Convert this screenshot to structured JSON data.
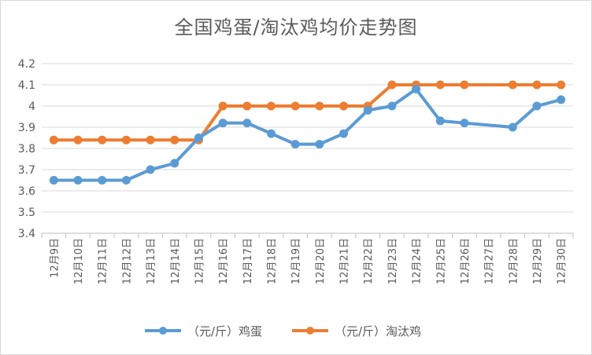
{
  "chart_data": {
    "type": "line",
    "title": "全国鸡蛋/淘汰鸡均价走势图",
    "categories": [
      "12月9日",
      "12月10日",
      "12月11日",
      "12月12日",
      "12月13日",
      "12月14日",
      "12月15日",
      "12月16日",
      "12月17日",
      "12月18日",
      "12月19日",
      "12月20日",
      "12月21日",
      "12月22日",
      "12月23日",
      "12月24日",
      "12月25日",
      "12月26日",
      "12月27日",
      "12月28日",
      "12月29日",
      "12月30日"
    ],
    "yticks": [
      "3.4",
      "3.5",
      "3.6",
      "3.7",
      "3.8",
      "3.9",
      "4",
      "4.1",
      "4.2"
    ],
    "ylim": [
      3.4,
      4.2
    ],
    "grid": true,
    "legend_position": "bottom",
    "series": [
      {
        "name": "（元/斤）鸡蛋",
        "color": "#5b9bd5",
        "values": [
          3.65,
          3.65,
          3.65,
          3.65,
          3.7,
          3.73,
          3.85,
          3.92,
          3.92,
          3.87,
          3.82,
          3.82,
          3.87,
          3.98,
          4.0,
          4.08,
          3.93,
          3.92,
          null,
          3.9,
          4.0,
          4.03
        ]
      },
      {
        "name": "（元/斤）淘汰鸡",
        "color": "#ed7d31",
        "values": [
          3.84,
          3.84,
          3.84,
          3.84,
          3.84,
          3.84,
          3.84,
          4.0,
          4.0,
          4.0,
          4.0,
          4.0,
          4.0,
          4.0,
          4.1,
          4.1,
          4.1,
          4.1,
          null,
          4.1,
          4.1,
          4.1
        ]
      }
    ]
  }
}
